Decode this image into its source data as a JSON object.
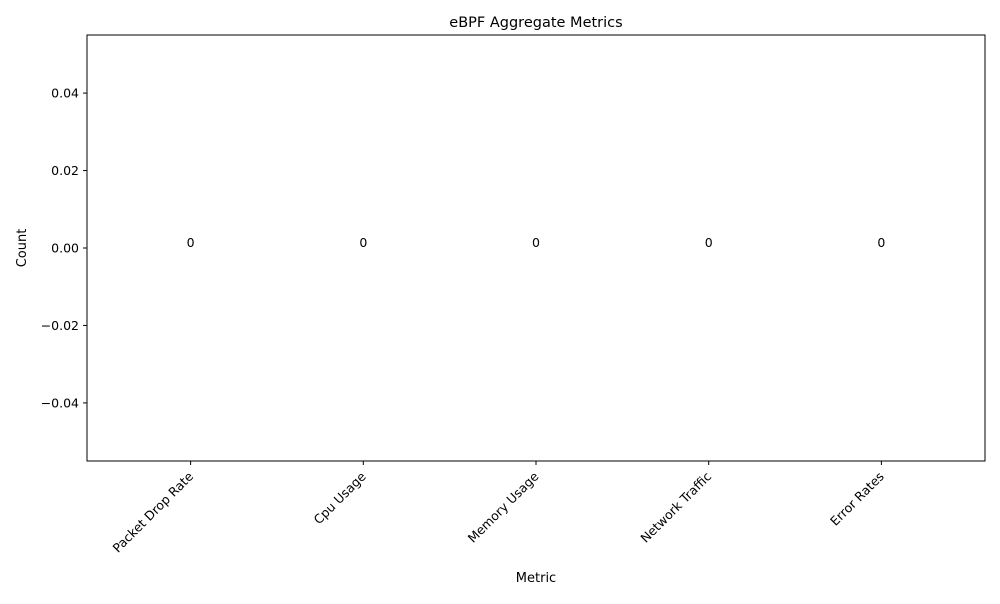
{
  "chart_data": {
    "type": "bar",
    "title": "eBPF Aggregate Metrics",
    "xlabel": "Metric",
    "ylabel": "Count",
    "categories": [
      "Packet Drop Rate",
      "Cpu Usage",
      "Memory Usage",
      "Network Traffic",
      "Error Rates"
    ],
    "values": [
      0,
      0,
      0,
      0,
      0
    ],
    "data_labels": [
      "0",
      "0",
      "0",
      "0",
      "0"
    ],
    "ylim": [
      -0.055,
      0.055
    ],
    "yticks": [
      -0.04,
      -0.02,
      0.0,
      0.02,
      0.04
    ],
    "ytick_labels": [
      "−0.04",
      "−0.02",
      "0.00",
      "0.02",
      "0.04"
    ],
    "grid": false,
    "legend": "none"
  }
}
